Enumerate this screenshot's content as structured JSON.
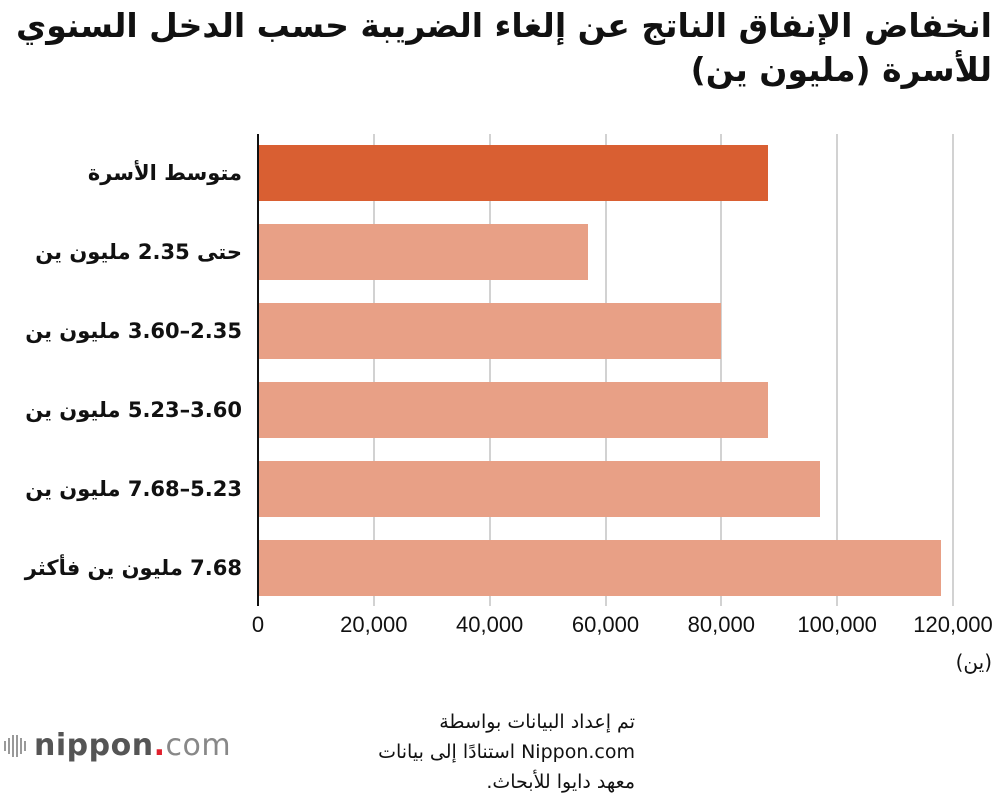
{
  "title": "انخفاض الإنفاق الناتج عن إلغاء الضريبة حسب الدخل السنوي للأسرة (مليون ين)",
  "unit_label": "(ين)",
  "source": "تم إعداد البيانات بواسطة Nippon.com استنادًا إلى بيانات معهد دايوا للأبحاث.",
  "logo": {
    "name": "nippon",
    "dot": ".",
    "tld": "com"
  },
  "colors": {
    "highlight": "#d95f32",
    "bar": "#e8a086",
    "grid": "#d2d2d2",
    "axis": "#111111"
  },
  "chart_data": {
    "type": "bar",
    "orientation": "horizontal",
    "title": "انخفاض الإنفاق الناتج عن إلغاء الضريبة حسب الدخل السنوي للأسرة (مليون ين)",
    "xlabel": "(ين)",
    "ylabel": "",
    "categories": [
      "متوسط الأسرة",
      "حتى 2.35 مليون ين",
      "2.35–3.60 مليون ين",
      "3.60–5.23 مليون ين",
      "5.23–7.68 مليون ين",
      "7.68 مليون ين فأكثر"
    ],
    "values": [
      88000,
      57000,
      80000,
      88000,
      97000,
      118000
    ],
    "highlighted_index": 0,
    "xlim": [
      0,
      120000
    ],
    "x_ticks": [
      "0",
      "20,000",
      "40,000",
      "60,000",
      "80,000",
      "100,000",
      "120,000"
    ],
    "x_tick_values": [
      0,
      20000,
      40000,
      60000,
      80000,
      100000,
      120000
    ],
    "grid": true,
    "legend": null
  }
}
